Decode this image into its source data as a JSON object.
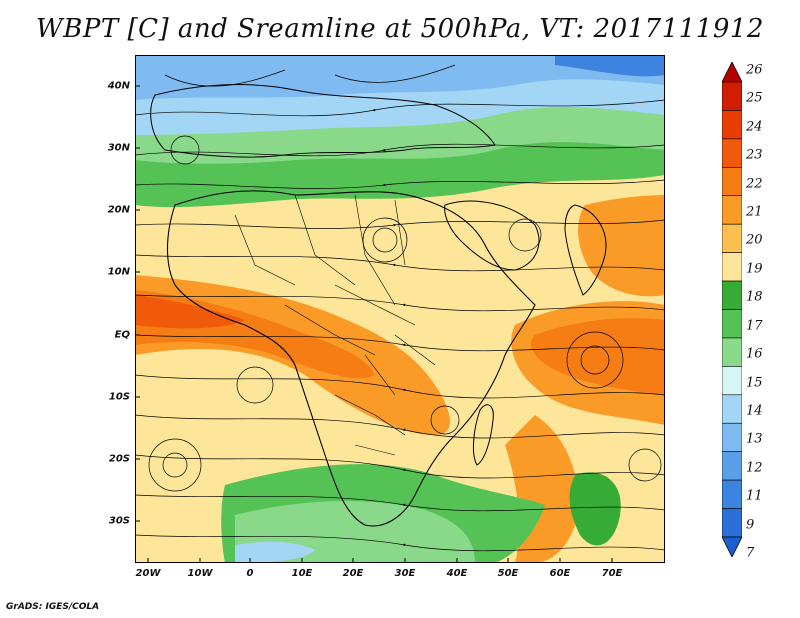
{
  "title": "WBPT [C] and Sreamline at 500hPa, VT: 2017111912",
  "lat_labels": [
    "40N",
    "30N",
    "20N",
    "10N",
    "EQ",
    "10S",
    "20S",
    "30S"
  ],
  "lon_labels": [
    "20W",
    "10W",
    "0",
    "10E",
    "20E",
    "30E",
    "40E",
    "50E",
    "60E",
    "70E"
  ],
  "colorbar": {
    "levels": [
      "26",
      "25",
      "24",
      "23",
      "22",
      "21",
      "20",
      "19",
      "18",
      "17",
      "16",
      "15",
      "14",
      "13",
      "12",
      "11",
      "9",
      "7"
    ],
    "colors": [
      "#b40000",
      "#d21e00",
      "#e83c00",
      "#f05a0a",
      "#f57d14",
      "#fa9b28",
      "#fdc050",
      "#fde699",
      "#36ab36",
      "#55c255",
      "#8ad98a",
      "#d6f5f5",
      "#a3d5f5",
      "#7fbaf0",
      "#5b9ee8",
      "#3d84e0",
      "#2a6fd8",
      "#1a5ed0"
    ]
  },
  "credit": "GrADS: IGES/COLA"
}
